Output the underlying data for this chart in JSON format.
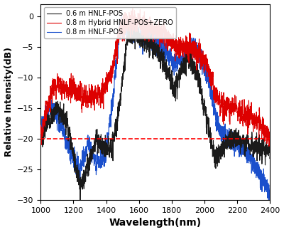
{
  "title": "",
  "xlabel": "Wavelength(nm)",
  "ylabel": "Relative Intensity(dB)",
  "xlim": [
    1000,
    2400
  ],
  "ylim": [
    -30,
    2
  ],
  "yticks": [
    0,
    -5,
    -10,
    -15,
    -20,
    -25,
    -30
  ],
  "xticks": [
    1000,
    1200,
    1400,
    1600,
    1800,
    2000,
    2200,
    2400
  ],
  "dashed_line_y": -20,
  "legend": [
    "0.6 m HNLF-POS",
    "0.8 m Hybrid HNLF-POS+ZERO",
    "0.8 m HNLF-POS"
  ],
  "colors": [
    "#1a1a1a",
    "#dd0000",
    "#1a4fcc"
  ],
  "linewidth": 0.8,
  "figsize": [
    4.0,
    3.26
  ],
  "dpi": 100
}
